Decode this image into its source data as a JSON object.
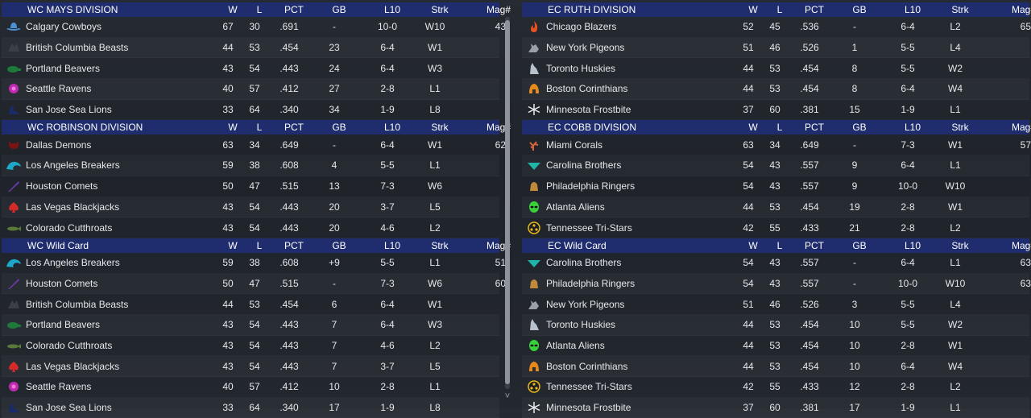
{
  "columns": {
    "w": "W",
    "l": "L",
    "pct": "PCT",
    "gb": "GB",
    "l10": "L10",
    "strk": "Strk",
    "mag": "Mag#"
  },
  "left": [
    {
      "title": "WC MAYS DIVISION",
      "rows": [
        {
          "icon": "cowboy-hat-icon",
          "color": "#4a8fd0",
          "team": "Calgary Cowboys",
          "w": "67",
          "l": "30",
          "pct": ".691",
          "gb": "-",
          "l10": "10-0",
          "strk": "W10",
          "mag": "43"
        },
        {
          "icon": "beast-icon",
          "color": "#3b3f46",
          "team": "British Columbia Beasts",
          "w": "44",
          "l": "53",
          "pct": ".454",
          "gb": "23",
          "l10": "6-4",
          "strk": "W1",
          "mag": ""
        },
        {
          "icon": "beaver-icon",
          "color": "#1d7a3a",
          "team": "Portland Beavers",
          "w": "43",
          "l": "54",
          "pct": ".443",
          "gb": "24",
          "l10": "6-4",
          "strk": "W3",
          "mag": ""
        },
        {
          "icon": "raven-icon",
          "color": "#c02ab0",
          "team": "Seattle Ravens",
          "w": "40",
          "l": "57",
          "pct": ".412",
          "gb": "27",
          "l10": "2-8",
          "strk": "L1",
          "mag": ""
        },
        {
          "icon": "sea-lion-icon",
          "color": "#1a2a6b",
          "team": "San Jose Sea Lions",
          "w": "33",
          "l": "64",
          "pct": ".340",
          "gb": "34",
          "l10": "1-9",
          "strk": "L8",
          "mag": ""
        }
      ]
    },
    {
      "title": "WC ROBINSON DIVISION",
      "rows": [
        {
          "icon": "demon-icon",
          "color": "#7a1414",
          "team": "Dallas Demons",
          "w": "63",
          "l": "34",
          "pct": ".649",
          "gb": "-",
          "l10": "6-4",
          "strk": "W1",
          "mag": "62"
        },
        {
          "icon": "wave-icon",
          "color": "#1fa7c9",
          "team": "Los Angeles Breakers",
          "w": "59",
          "l": "38",
          "pct": ".608",
          "gb": "4",
          "l10": "5-5",
          "strk": "L1",
          "mag": ""
        },
        {
          "icon": "comet-icon",
          "color": "#6a3aa8",
          "team": "Houston Comets",
          "w": "50",
          "l": "47",
          "pct": ".515",
          "gb": "13",
          "l10": "7-3",
          "strk": "W6",
          "mag": ""
        },
        {
          "icon": "spade-icon",
          "color": "#d42a2a",
          "team": "Las Vegas Blackjacks",
          "w": "43",
          "l": "54",
          "pct": ".443",
          "gb": "20",
          "l10": "3-7",
          "strk": "L5",
          "mag": ""
        },
        {
          "icon": "trout-icon",
          "color": "#5a7a3a",
          "team": "Colorado Cutthroats",
          "w": "43",
          "l": "54",
          "pct": ".443",
          "gb": "20",
          "l10": "4-6",
          "strk": "L2",
          "mag": ""
        }
      ]
    },
    {
      "title": "WC  Wild Card",
      "rows": [
        {
          "icon": "wave-icon",
          "color": "#1fa7c9",
          "team": "Los Angeles Breakers",
          "w": "59",
          "l": "38",
          "pct": ".608",
          "gb": "+9",
          "l10": "5-5",
          "strk": "L1",
          "mag": "51"
        },
        {
          "icon": "comet-icon",
          "color": "#6a3aa8",
          "team": "Houston Comets",
          "w": "50",
          "l": "47",
          "pct": ".515",
          "gb": "-",
          "l10": "7-3",
          "strk": "W6",
          "mag": "60"
        },
        {
          "icon": "beast-icon",
          "color": "#3b3f46",
          "team": "British Columbia Beasts",
          "w": "44",
          "l": "53",
          "pct": ".454",
          "gb": "6",
          "l10": "6-4",
          "strk": "W1",
          "mag": ""
        },
        {
          "icon": "beaver-icon",
          "color": "#1d7a3a",
          "team": "Portland Beavers",
          "w": "43",
          "l": "54",
          "pct": ".443",
          "gb": "7",
          "l10": "6-4",
          "strk": "W3",
          "mag": ""
        },
        {
          "icon": "trout-icon",
          "color": "#5a7a3a",
          "team": "Colorado Cutthroats",
          "w": "43",
          "l": "54",
          "pct": ".443",
          "gb": "7",
          "l10": "4-6",
          "strk": "L2",
          "mag": ""
        },
        {
          "icon": "spade-icon",
          "color": "#d42a2a",
          "team": "Las Vegas Blackjacks",
          "w": "43",
          "l": "54",
          "pct": ".443",
          "gb": "7",
          "l10": "3-7",
          "strk": "L5",
          "mag": ""
        },
        {
          "icon": "raven-icon",
          "color": "#c02ab0",
          "team": "Seattle Ravens",
          "w": "40",
          "l": "57",
          "pct": ".412",
          "gb": "10",
          "l10": "2-8",
          "strk": "L1",
          "mag": ""
        },
        {
          "icon": "sea-lion-icon",
          "color": "#1a2a6b",
          "team": "San Jose Sea Lions",
          "w": "33",
          "l": "64",
          "pct": ".340",
          "gb": "17",
          "l10": "1-9",
          "strk": "L8",
          "mag": ""
        }
      ]
    }
  ],
  "right": [
    {
      "title": "EC RUTH DIVISION",
      "rows": [
        {
          "icon": "flame-icon",
          "color": "#e8501e",
          "team": "Chicago Blazers",
          "w": "52",
          "l": "45",
          "pct": ".536",
          "gb": "-",
          "l10": "6-4",
          "strk": "L2",
          "mag": "65"
        },
        {
          "icon": "pigeon-icon",
          "color": "#9aa0a8",
          "team": "New York Pigeons",
          "w": "51",
          "l": "46",
          "pct": ".526",
          "gb": "1",
          "l10": "5-5",
          "strk": "L4",
          "mag": ""
        },
        {
          "icon": "husky-icon",
          "color": "#b8c2cc",
          "team": "Toronto Huskies",
          "w": "44",
          "l": "53",
          "pct": ".454",
          "gb": "8",
          "l10": "5-5",
          "strk": "W2",
          "mag": ""
        },
        {
          "icon": "helmet-icon",
          "color": "#e88a1a",
          "team": "Boston Corinthians",
          "w": "44",
          "l": "53",
          "pct": ".454",
          "gb": "8",
          "l10": "6-4",
          "strk": "W4",
          "mag": ""
        },
        {
          "icon": "snowflake-icon",
          "color": "#e8ecf0",
          "team": "Minnesota Frostbite",
          "w": "37",
          "l": "60",
          "pct": ".381",
          "gb": "15",
          "l10": "1-9",
          "strk": "L1",
          "mag": ""
        }
      ]
    },
    {
      "title": "EC COBB DIVISION",
      "rows": [
        {
          "icon": "coral-icon",
          "color": "#d8643a",
          "team": "Miami Corals",
          "w": "63",
          "l": "34",
          "pct": ".649",
          "gb": "-",
          "l10": "7-3",
          "strk": "W1",
          "mag": "57"
        },
        {
          "icon": "diamond-icon",
          "color": "#1fb5a8",
          "team": "Carolina Brothers",
          "w": "54",
          "l": "43",
          "pct": ".557",
          "gb": "9",
          "l10": "6-4",
          "strk": "L1",
          "mag": ""
        },
        {
          "icon": "bell-icon",
          "color": "#c08a3a",
          "team": "Philadelphia Ringers",
          "w": "54",
          "l": "43",
          "pct": ".557",
          "gb": "9",
          "l10": "10-0",
          "strk": "W10",
          "mag": ""
        },
        {
          "icon": "alien-icon",
          "color": "#3ad03a",
          "team": "Atlanta Aliens",
          "w": "44",
          "l": "53",
          "pct": ".454",
          "gb": "19",
          "l10": "2-8",
          "strk": "W1",
          "mag": ""
        },
        {
          "icon": "tri-star-icon",
          "color": "#e8b81a",
          "team": "Tennessee Tri-Stars",
          "w": "42",
          "l": "55",
          "pct": ".433",
          "gb": "21",
          "l10": "2-8",
          "strk": "L2",
          "mag": ""
        }
      ]
    },
    {
      "title": "EC  Wild Card",
      "rows": [
        {
          "icon": "diamond-icon",
          "color": "#1fb5a8",
          "team": "Carolina Brothers",
          "w": "54",
          "l": "43",
          "pct": ".557",
          "gb": "-",
          "l10": "6-4",
          "strk": "L1",
          "mag": "63"
        },
        {
          "icon": "bell-icon",
          "color": "#c08a3a",
          "team": "Philadelphia Ringers",
          "w": "54",
          "l": "43",
          "pct": ".557",
          "gb": "-",
          "l10": "10-0",
          "strk": "W10",
          "mag": "63"
        },
        {
          "icon": "pigeon-icon",
          "color": "#9aa0a8",
          "team": "New York Pigeons",
          "w": "51",
          "l": "46",
          "pct": ".526",
          "gb": "3",
          "l10": "5-5",
          "strk": "L4",
          "mag": ""
        },
        {
          "icon": "husky-icon",
          "color": "#b8c2cc",
          "team": "Toronto Huskies",
          "w": "44",
          "l": "53",
          "pct": ".454",
          "gb": "10",
          "l10": "5-5",
          "strk": "W2",
          "mag": ""
        },
        {
          "icon": "alien-icon",
          "color": "#3ad03a",
          "team": "Atlanta Aliens",
          "w": "44",
          "l": "53",
          "pct": ".454",
          "gb": "10",
          "l10": "2-8",
          "strk": "W1",
          "mag": ""
        },
        {
          "icon": "helmet-icon",
          "color": "#e88a1a",
          "team": "Boston Corinthians",
          "w": "44",
          "l": "53",
          "pct": ".454",
          "gb": "10",
          "l10": "6-4",
          "strk": "W4",
          "mag": ""
        },
        {
          "icon": "tri-star-icon",
          "color": "#e8b81a",
          "team": "Tennessee Tri-Stars",
          "w": "42",
          "l": "55",
          "pct": ".433",
          "gb": "12",
          "l10": "2-8",
          "strk": "L2",
          "mag": ""
        },
        {
          "icon": "snowflake-icon",
          "color": "#e8ecf0",
          "team": "Minnesota Frostbite",
          "w": "37",
          "l": "60",
          "pct": ".381",
          "gb": "17",
          "l10": "1-9",
          "strk": "L1",
          "mag": ""
        }
      ]
    }
  ],
  "scrollbar": {
    "up_icon": "chevron-up-icon",
    "down_icon": "chevron-down-icon"
  }
}
